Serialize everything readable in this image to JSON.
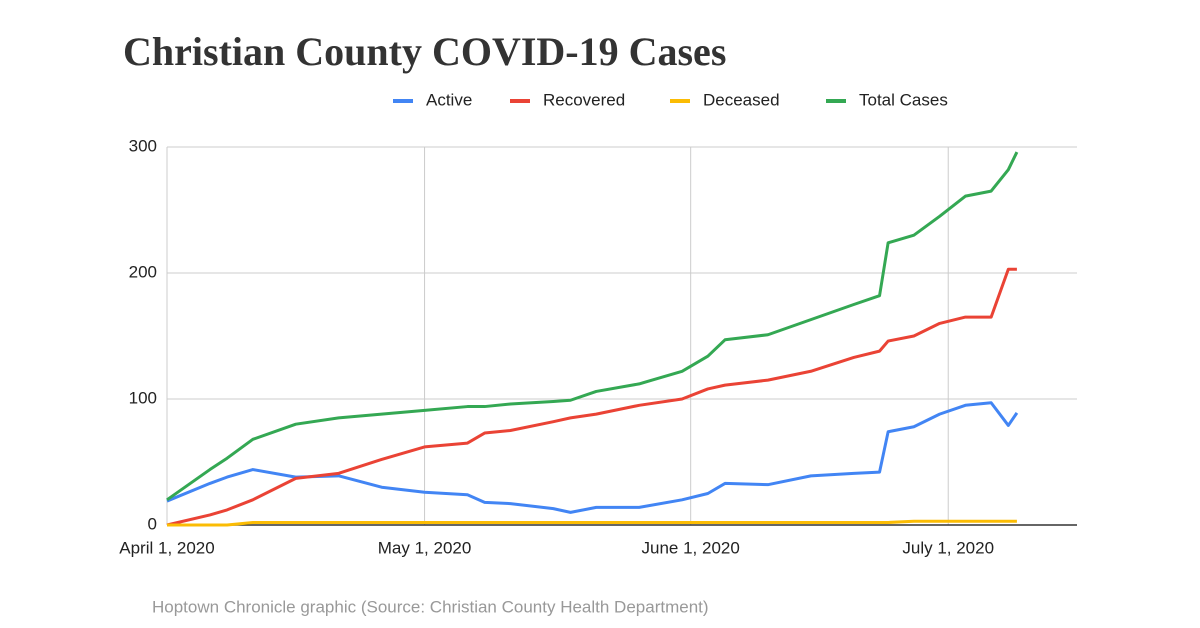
{
  "chart_data": {
    "type": "line",
    "title": "Christian County COVID-19 Cases",
    "source": "Hoptown Chronicle graphic (Source: Christian County Health Department)",
    "x": [
      "2020-04-01",
      "2020-04-06",
      "2020-04-08",
      "2020-04-11",
      "2020-04-16",
      "2020-04-21",
      "2020-04-26",
      "2020-05-01",
      "2020-05-06",
      "2020-05-08",
      "2020-05-11",
      "2020-05-16",
      "2020-05-18",
      "2020-05-21",
      "2020-05-26",
      "2020-05-31",
      "2020-06-03",
      "2020-06-05",
      "2020-06-10",
      "2020-06-15",
      "2020-06-20",
      "2020-06-23",
      "2020-06-24",
      "2020-06-27",
      "2020-06-30",
      "2020-07-03",
      "2020-07-06",
      "2020-07-08",
      "2020-07-09"
    ],
    "series": [
      {
        "name": "Active",
        "color": "#4285f4",
        "values": [
          19,
          33,
          38,
          44,
          38,
          39,
          30,
          26,
          24,
          18,
          17,
          13,
          10,
          14,
          14,
          20,
          25,
          33,
          32,
          39,
          41,
          42,
          74,
          78,
          88,
          95,
          97,
          79,
          89
        ]
      },
      {
        "name": "Recovered",
        "color": "#ea4335",
        "values": [
          0,
          8,
          12,
          20,
          37,
          41,
          52,
          62,
          65,
          73,
          75,
          82,
          85,
          88,
          95,
          100,
          108,
          111,
          115,
          122,
          133,
          138,
          146,
          150,
          160,
          165,
          165,
          203,
          203
        ]
      },
      {
        "name": "Deceased",
        "color": "#fbbc04",
        "values": [
          0,
          0,
          0,
          2,
          2,
          2,
          2,
          2,
          2,
          2,
          2,
          2,
          2,
          2,
          2,
          2,
          2,
          2,
          2,
          2,
          2,
          2,
          2,
          3,
          3,
          3,
          3,
          3,
          3
        ]
      },
      {
        "name": "Total Cases",
        "color": "#34a853",
        "values": [
          20,
          44,
          53,
          68,
          80,
          85,
          88,
          91,
          94,
          94,
          96,
          98,
          99,
          106,
          112,
          122,
          134,
          147,
          151,
          163,
          175,
          182,
          224,
          230,
          245,
          261,
          265,
          282,
          296
        ]
      }
    ],
    "xlim": [
      "2020-04-01",
      "2020-07-16"
    ],
    "xticks": [
      {
        "value": "2020-04-01",
        "label": "April 1, 2020"
      },
      {
        "value": "2020-05-01",
        "label": "May 1, 2020"
      },
      {
        "value": "2020-06-01",
        "label": "June 1, 2020"
      },
      {
        "value": "2020-07-01",
        "label": "July 1, 2020"
      }
    ],
    "ylim": [
      0,
      300
    ],
    "yticks": [
      0,
      100,
      200,
      300
    ],
    "grid": true,
    "legend": "top"
  }
}
